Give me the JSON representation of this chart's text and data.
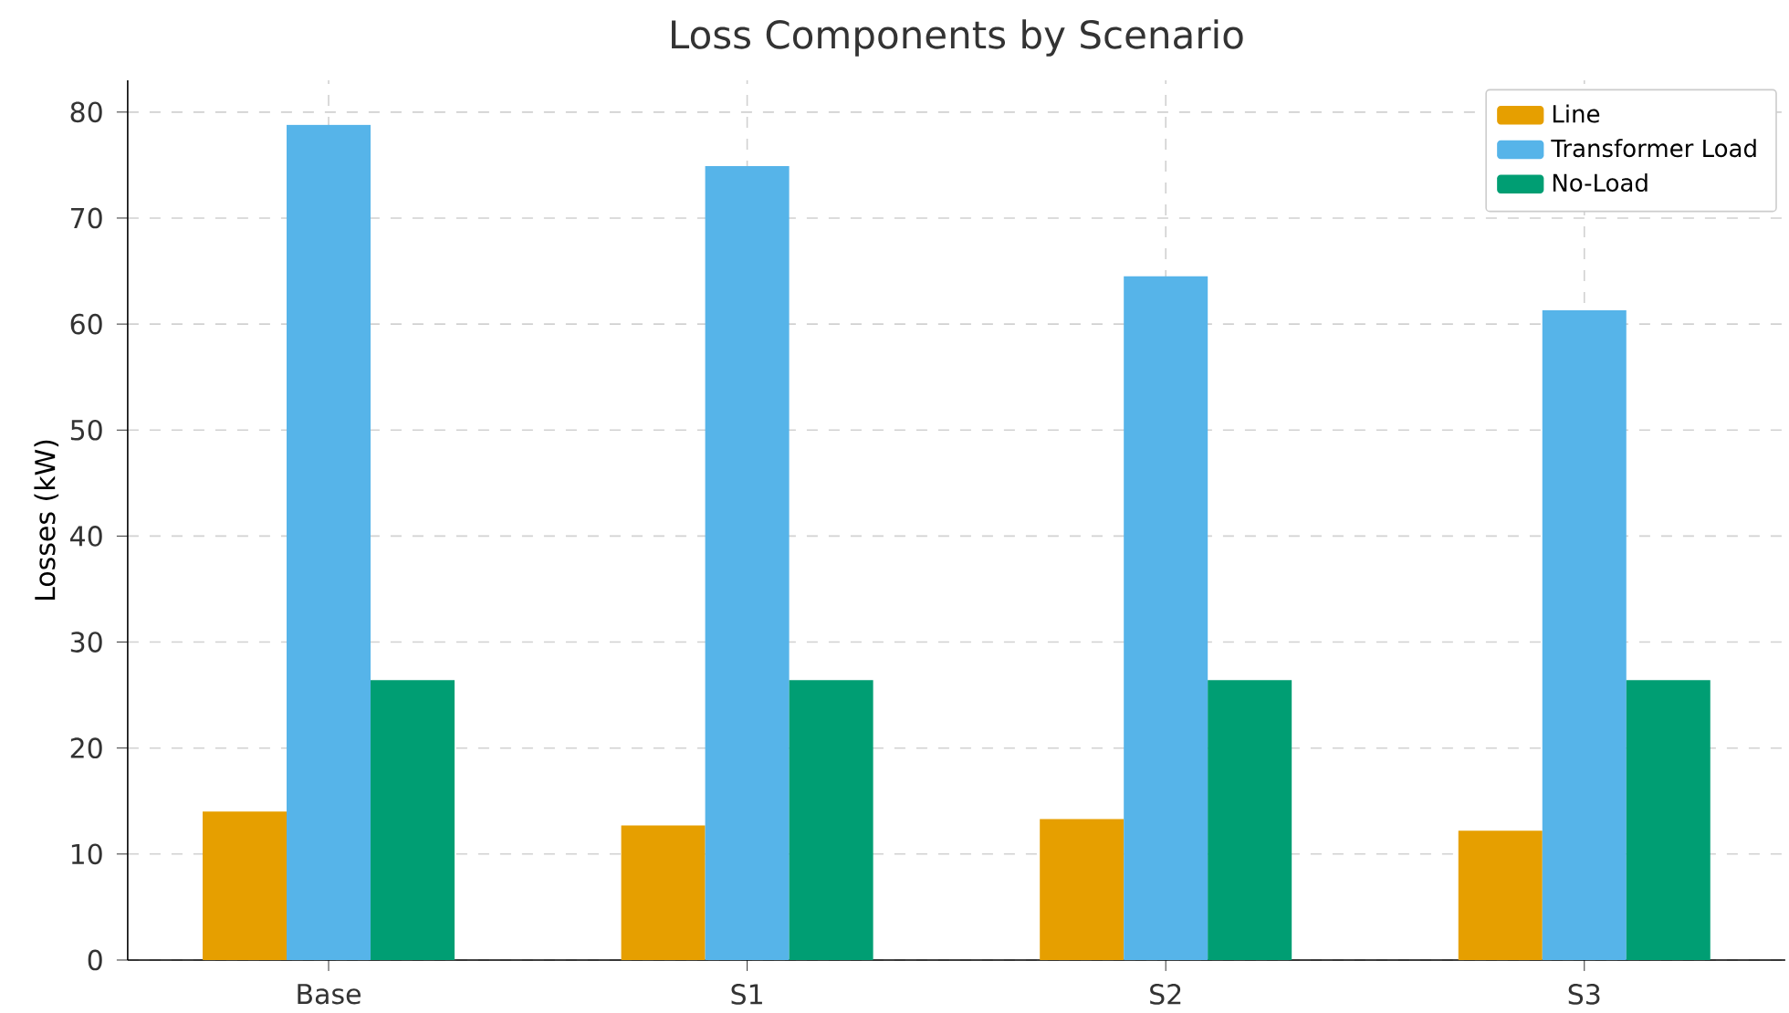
{
  "chart_data": {
    "type": "bar",
    "title": "Loss Components by Scenario",
    "ylabel": "Losses (kW)",
    "categories": [
      "Base",
      "S1",
      "S2",
      "S3"
    ],
    "series": [
      {
        "name": "Line",
        "color": "#e69f00",
        "values": [
          14.0,
          12.7,
          13.3,
          12.2
        ]
      },
      {
        "name": "Transformer Load",
        "color": "#56b4e9",
        "values": [
          78.8,
          74.9,
          64.5,
          61.3
        ]
      },
      {
        "name": "No-Load",
        "color": "#009e73",
        "values": [
          26.4,
          26.4,
          26.4,
          26.4
        ]
      }
    ],
    "ylim": [
      0,
      83
    ],
    "yticks": [
      0,
      10,
      20,
      30,
      40,
      50,
      60,
      70,
      80
    ],
    "grid": true,
    "legend": "top right"
  }
}
